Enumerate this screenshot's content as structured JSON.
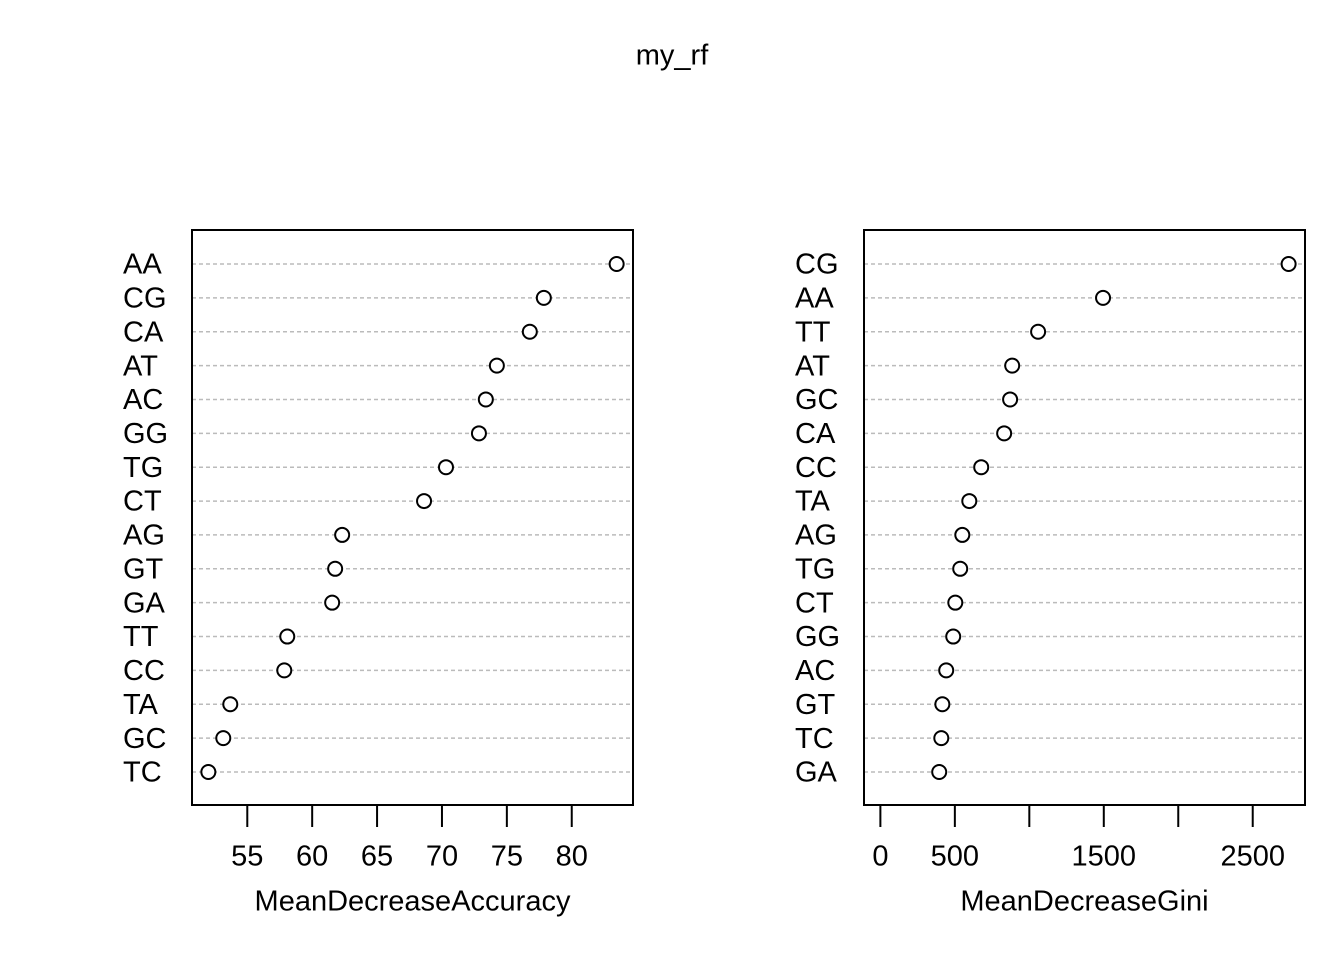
{
  "title": "my_rf",
  "chart_data": [
    {
      "type": "dot",
      "xlabel": "MeanDecreaseAccuracy",
      "categories": [
        "AA",
        "CG",
        "CA",
        "AT",
        "AC",
        "GG",
        "TG",
        "CT",
        "AG",
        "GT",
        "GA",
        "TT",
        "CC",
        "TA",
        "GC",
        "TC"
      ],
      "values": [
        83.46,
        77.85,
        76.77,
        74.23,
        73.38,
        72.85,
        70.31,
        68.62,
        62.31,
        61.77,
        61.54,
        58.08,
        57.85,
        53.69,
        53.15,
        52.0
      ],
      "xlim": [
        50.74,
        84.72
      ],
      "xticks": [
        55,
        60,
        65,
        70,
        75,
        80
      ],
      "grid": true
    },
    {
      "type": "dot",
      "xlabel": "MeanDecreaseGini",
      "categories": [
        "CG",
        "AA",
        "TT",
        "AT",
        "GC",
        "CA",
        "CC",
        "TA",
        "AG",
        "TG",
        "CT",
        "GG",
        "AC",
        "GT",
        "TC",
        "GA"
      ],
      "values": [
        2741,
        1495,
        1059,
        885,
        871,
        831,
        677,
        597,
        550,
        536,
        503,
        489,
        442,
        416,
        409,
        395
      ],
      "xlim": [
        -110,
        2851
      ],
      "xticks": [
        0,
        500,
        1500,
        2500
      ],
      "xticks_unlabeled": [
        1000,
        2000
      ],
      "grid": true
    }
  ]
}
